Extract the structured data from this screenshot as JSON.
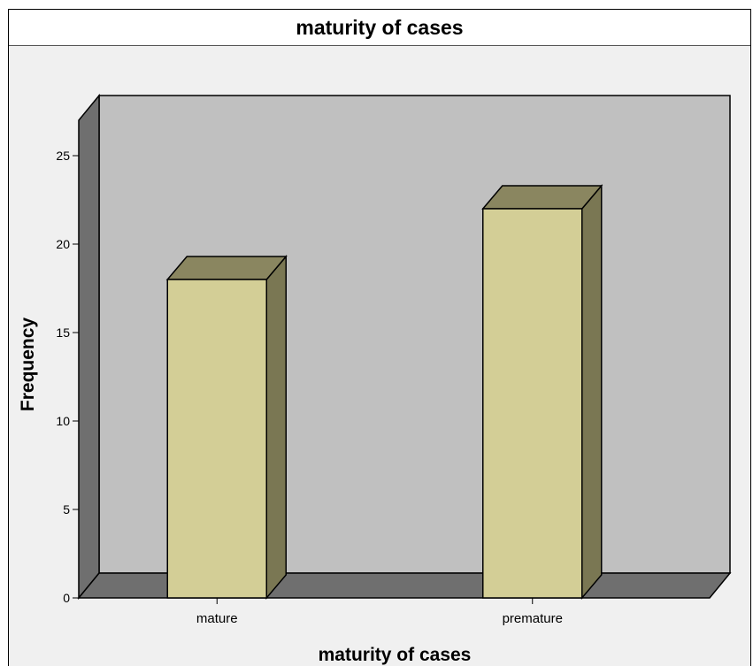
{
  "header": {
    "title": "maturity of cases"
  },
  "chart_data": {
    "type": "bar",
    "title": "maturity of cases",
    "xlabel": "maturity of cases",
    "ylabel": "Frequency",
    "categories": [
      "mature",
      "premature"
    ],
    "values": [
      18,
      22
    ],
    "ylim": [
      0,
      27
    ],
    "yticks": [
      0,
      5,
      10,
      15,
      20,
      25
    ],
    "grid": false,
    "style": "3d",
    "colors": {
      "bar_front": "#d3ce96",
      "bar_top": "#8a8660",
      "bar_side": "#7a7753",
      "back_wall": "#c0c0c0",
      "left_wall": "#6f6f6f",
      "floor": "#6f6f6f",
      "background": "#f0f0f0"
    }
  }
}
